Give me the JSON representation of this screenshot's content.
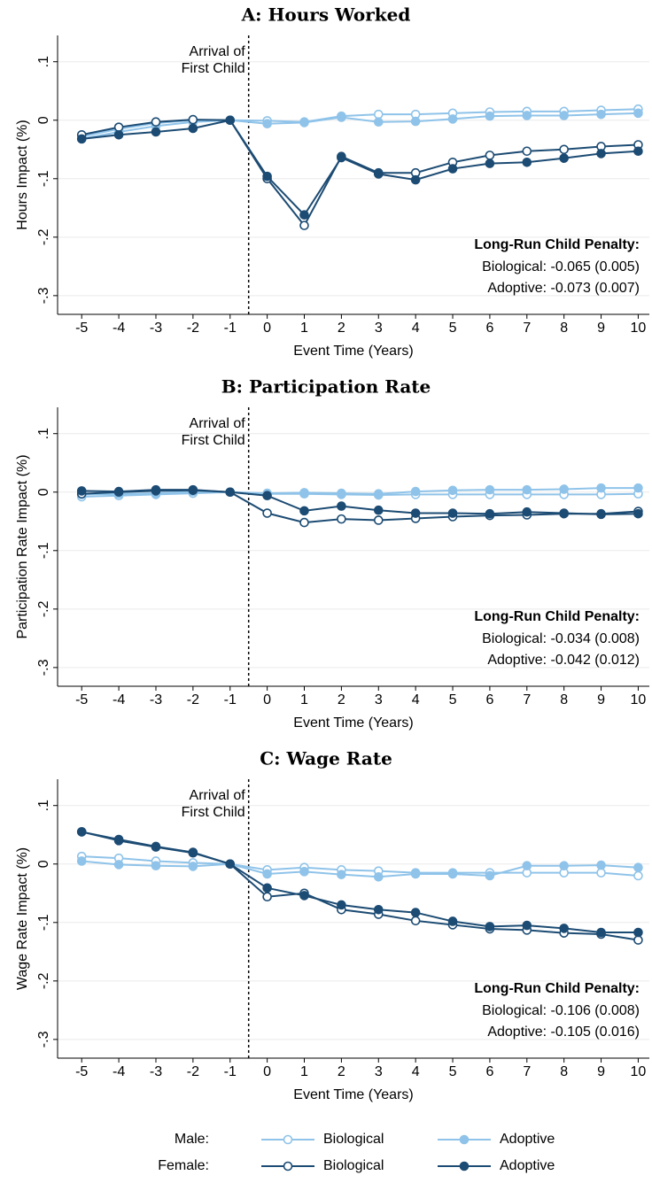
{
  "chart_data": [
    {
      "type": "line",
      "title": "A: Hours Worked",
      "xlabel": "Event Time (Years)",
      "ylabel": "Hours Impact (%)",
      "x": [
        -5,
        -4,
        -3,
        -2,
        -1,
        0,
        1,
        2,
        3,
        4,
        5,
        6,
        7,
        8,
        9,
        10
      ],
      "xlim": [
        -5.65,
        10.3
      ],
      "ylim": [
        -0.332,
        0.145
      ],
      "xticks": [
        -5,
        -4,
        -3,
        -2,
        -1,
        0,
        1,
        2,
        3,
        4,
        5,
        6,
        7,
        8,
        9,
        10
      ],
      "yticks": [
        {
          "value": 0.1,
          "label": ".1"
        },
        0,
        {
          "value": -0.1,
          "label": "-.1"
        },
        {
          "value": -0.2,
          "label": "-.2"
        },
        {
          "value": -0.3,
          "label": "-.3"
        }
      ],
      "grid": true,
      "event_line": -0.5,
      "event_label": [
        "Arrival of",
        "First Child"
      ],
      "penalty": {
        "title": "Long-Run Child Penalty:",
        "lines": [
          "Biological: -0.065 (0.005)",
          "Adoptive: -0.073 (0.007)"
        ]
      },
      "series": [
        {
          "name": "Biological",
          "color": "#8fc3e9",
          "filled": false,
          "values": [
            -0.028,
            -0.015,
            -0.005,
            0.0,
            0,
            -0.001,
            -0.003,
            0.007,
            0.01,
            0.01,
            0.012,
            0.014,
            0.015,
            0.015,
            0.017,
            0.019
          ]
        },
        {
          "name": "Adoptive",
          "color": "#8fc3e9",
          "filled": true,
          "values": [
            -0.032,
            -0.02,
            -0.01,
            -0.003,
            0,
            -0.006,
            -0.004,
            0.005,
            -0.003,
            -0.002,
            0.002,
            0.007,
            0.008,
            0.008,
            0.01,
            0.012
          ]
        },
        {
          "name": "Biological",
          "color": "#1c4b73",
          "filled": false,
          "values": [
            -0.025,
            -0.012,
            -0.003,
            0.001,
            0,
            -0.1,
            -0.18,
            -0.062,
            -0.09,
            -0.09,
            -0.072,
            -0.06,
            -0.053,
            -0.05,
            -0.045,
            -0.042
          ]
        },
        {
          "name": "Adoptive",
          "color": "#1c4b73",
          "filled": true,
          "values": [
            -0.032,
            -0.025,
            -0.02,
            -0.014,
            0,
            -0.096,
            -0.162,
            -0.064,
            -0.092,
            -0.102,
            -0.083,
            -0.074,
            -0.072,
            -0.065,
            -0.057,
            -0.053
          ]
        }
      ]
    },
    {
      "type": "line",
      "title": "B: Participation Rate",
      "xlabel": "Event Time (Years)",
      "ylabel": "Participation Rate Impact (%)",
      "x": [
        -5,
        -4,
        -3,
        -2,
        -1,
        0,
        1,
        2,
        3,
        4,
        5,
        6,
        7,
        8,
        9,
        10
      ],
      "xlim": [
        -5.65,
        10.3
      ],
      "ylim": [
        -0.332,
        0.145
      ],
      "xticks": [
        -5,
        -4,
        -3,
        -2,
        -1,
        0,
        1,
        2,
        3,
        4,
        5,
        6,
        7,
        8,
        9,
        10
      ],
      "yticks": [
        {
          "value": 0.1,
          "label": ".1"
        },
        0,
        {
          "value": -0.1,
          "label": "-.1"
        },
        {
          "value": -0.2,
          "label": "-.2"
        },
        {
          "value": -0.3,
          "label": "-.3"
        }
      ],
      "grid": true,
      "event_line": -0.5,
      "event_label": [
        "Arrival of",
        "First Child"
      ],
      "penalty": {
        "title": "Long-Run Child Penalty:",
        "lines": [
          "Biological: -0.034 (0.008)",
          "Adoptive: -0.042 (0.012)"
        ]
      },
      "series": [
        {
          "name": "Biological",
          "color": "#8fc3e9",
          "filled": false,
          "values": [
            -0.008,
            -0.006,
            -0.004,
            -0.002,
            0,
            -0.003,
            -0.003,
            -0.004,
            -0.005,
            -0.004,
            -0.004,
            -0.004,
            -0.004,
            -0.004,
            -0.004,
            -0.003
          ]
        },
        {
          "name": "Adoptive",
          "color": "#8fc3e9",
          "filled": true,
          "values": [
            -0.004,
            -0.003,
            -0.002,
            0.001,
            0,
            -0.002,
            -0.001,
            -0.002,
            -0.003,
            0.001,
            0.003,
            0.004,
            0.004,
            0.005,
            0.007,
            0.007
          ]
        },
        {
          "name": "Biological",
          "color": "#1c4b73",
          "filled": false,
          "values": [
            -0.003,
            0.0,
            0.002,
            0.003,
            0,
            -0.036,
            -0.052,
            -0.046,
            -0.048,
            -0.045,
            -0.042,
            -0.04,
            -0.039,
            -0.037,
            -0.037,
            -0.033
          ]
        },
        {
          "name": "Adoptive",
          "color": "#1c4b73",
          "filled": true,
          "values": [
            0.002,
            0.001,
            0.004,
            0.004,
            0,
            -0.006,
            -0.032,
            -0.024,
            -0.031,
            -0.036,
            -0.036,
            -0.037,
            -0.034,
            -0.036,
            -0.038,
            -0.037
          ]
        }
      ]
    },
    {
      "type": "line",
      "title": "C: Wage Rate",
      "xlabel": "Event Time (Years)",
      "ylabel": "Wage Rate Impact (%)",
      "x": [
        -5,
        -4,
        -3,
        -2,
        -1,
        0,
        1,
        2,
        3,
        4,
        5,
        6,
        7,
        8,
        9,
        10
      ],
      "xlim": [
        -5.65,
        10.3
      ],
      "ylim": [
        -0.332,
        0.145
      ],
      "xticks": [
        -5,
        -4,
        -3,
        -2,
        -1,
        0,
        1,
        2,
        3,
        4,
        5,
        6,
        7,
        8,
        9,
        10
      ],
      "yticks": [
        {
          "value": 0.1,
          "label": ".1"
        },
        0,
        {
          "value": -0.1,
          "label": "-.1"
        },
        {
          "value": -0.2,
          "label": "-.2"
        },
        {
          "value": -0.3,
          "label": "-.3"
        }
      ],
      "grid": true,
      "event_line": -0.5,
      "event_label": [
        "Arrival of",
        "First Child"
      ],
      "penalty": {
        "title": "Long-Run Child Penalty:",
        "lines": [
          "Biological: -0.106 (0.008)",
          "Adoptive: -0.105 (0.016)"
        ]
      },
      "legend_groups": [
        "Male:",
        "Female:"
      ],
      "series": [
        {
          "name": "Biological",
          "color": "#8fc3e9",
          "filled": false,
          "values": [
            0.013,
            0.01,
            0.005,
            0.002,
            0,
            -0.01,
            -0.006,
            -0.01,
            -0.012,
            -0.015,
            -0.015,
            -0.015,
            -0.015,
            -0.015,
            -0.015,
            -0.02
          ]
        },
        {
          "name": "Adoptive",
          "color": "#8fc3e9",
          "filled": true,
          "values": [
            0.005,
            -0.001,
            -0.003,
            -0.004,
            0,
            -0.017,
            -0.013,
            -0.018,
            -0.022,
            -0.017,
            -0.017,
            -0.02,
            -0.003,
            -0.003,
            -0.002,
            -0.006
          ]
        },
        {
          "name": "Biological",
          "color": "#1c4b73",
          "filled": false,
          "values": [
            0.055,
            0.04,
            0.029,
            0.019,
            0,
            -0.056,
            -0.05,
            -0.078,
            -0.086,
            -0.097,
            -0.104,
            -0.111,
            -0.113,
            -0.118,
            -0.12,
            -0.13
          ]
        },
        {
          "name": "Adoptive",
          "color": "#1c4b73",
          "filled": true,
          "values": [
            0.055,
            0.042,
            0.03,
            0.02,
            0,
            -0.041,
            -0.054,
            -0.07,
            -0.078,
            -0.083,
            -0.098,
            -0.107,
            -0.105,
            -0.11,
            -0.117,
            -0.117
          ]
        }
      ]
    }
  ]
}
